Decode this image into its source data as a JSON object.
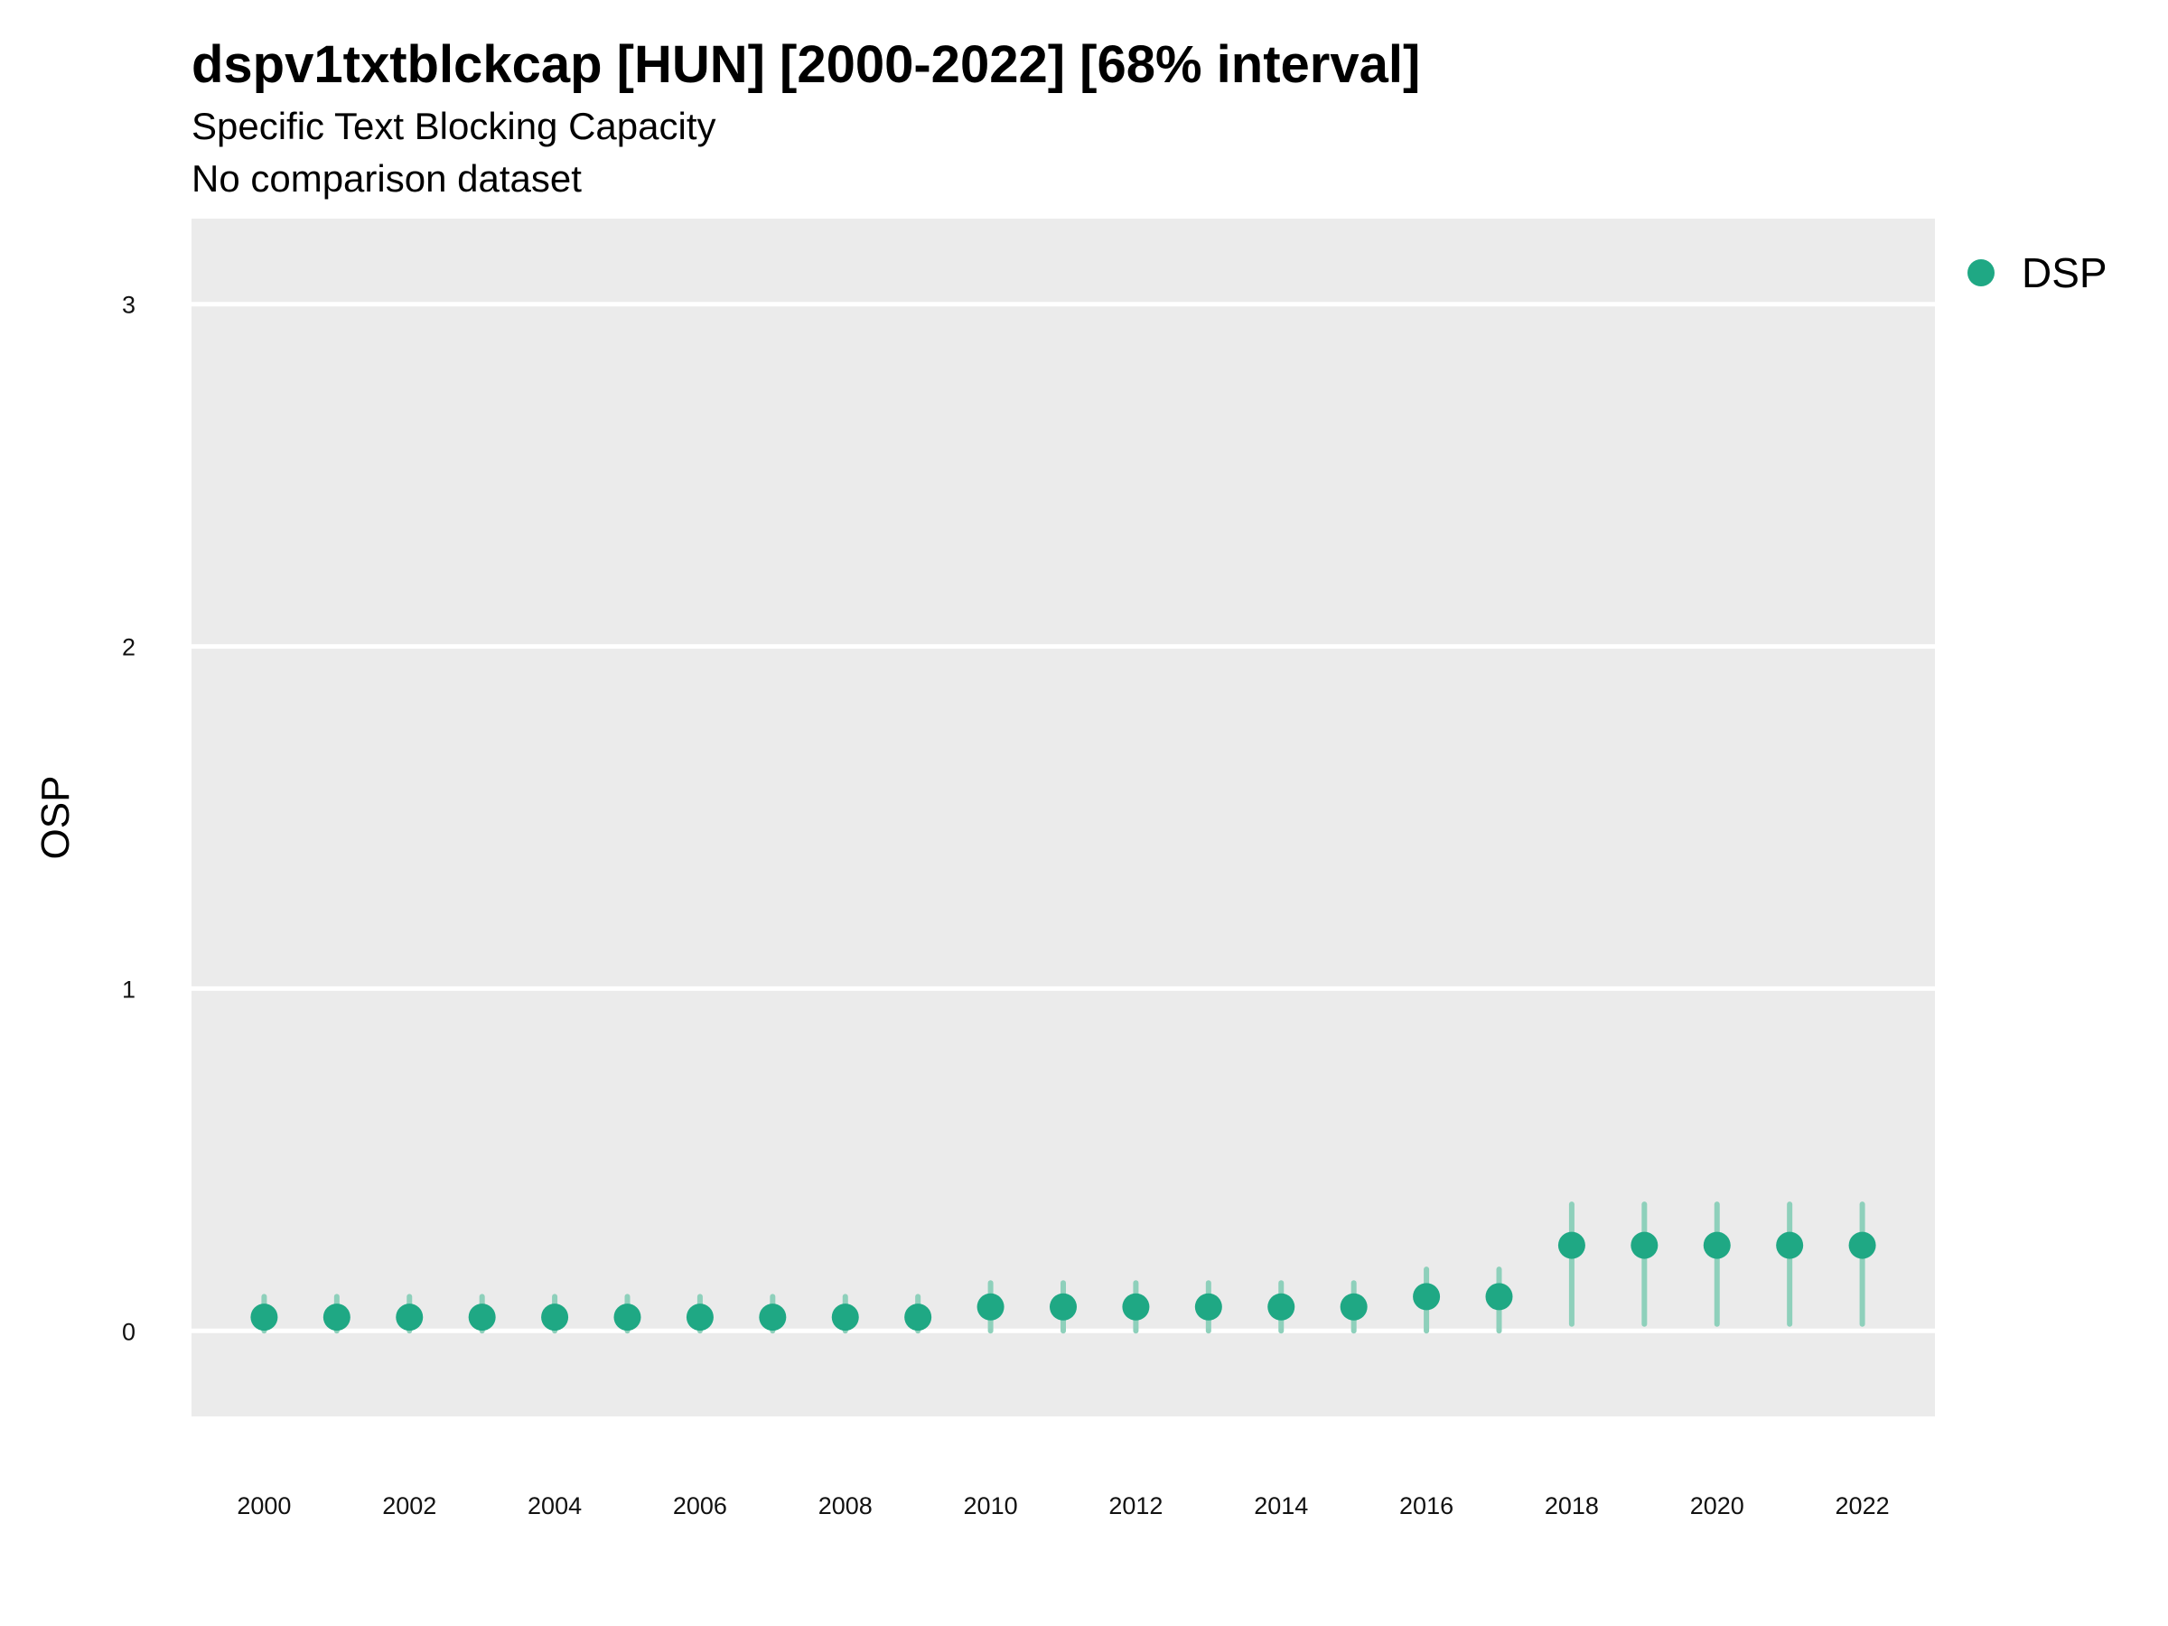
{
  "chart_data": {
    "type": "scatter",
    "title": "dspv1txtblckcap [HUN] [2000-2022] [68% interval]",
    "subtitle": "Specific Text Blocking Capacity",
    "caption": "No comparison dataset",
    "xlabel": "",
    "ylabel": "OSP",
    "x_tick_labels": [
      "2000",
      "2002",
      "2004",
      "2006",
      "2008",
      "2010",
      "2012",
      "2014",
      "2016",
      "2018",
      "2020",
      "2022"
    ],
    "y_tick_labels": [
      "0",
      "1",
      "2",
      "3"
    ],
    "xlim": [
      1999,
      2023
    ],
    "ylim": [
      -0.25,
      3.25
    ],
    "grid": true,
    "legend_position": "top-right",
    "colors": {
      "point": "#1fa884",
      "interval": "#8ed0bb",
      "panel": "#ebebeb",
      "grid": "#ffffff"
    },
    "series": [
      {
        "name": "DSP",
        "x": [
          2000,
          2001,
          2002,
          2003,
          2004,
          2005,
          2006,
          2007,
          2008,
          2009,
          2010,
          2011,
          2012,
          2013,
          2014,
          2015,
          2016,
          2017,
          2018,
          2019,
          2020,
          2021,
          2022
        ],
        "y": [
          0.04,
          0.04,
          0.04,
          0.04,
          0.04,
          0.04,
          0.04,
          0.04,
          0.04,
          0.04,
          0.07,
          0.07,
          0.07,
          0.07,
          0.07,
          0.07,
          0.1,
          0.1,
          0.25,
          0.25,
          0.25,
          0.25,
          0.25
        ],
        "lower": [
          0,
          0,
          0,
          0,
          0,
          0,
          0,
          0,
          0,
          0,
          0,
          0,
          0,
          0,
          0,
          0,
          0,
          0,
          0.02,
          0.02,
          0.02,
          0.02,
          0.02
        ],
        "upper": [
          0.1,
          0.1,
          0.1,
          0.1,
          0.1,
          0.1,
          0.1,
          0.1,
          0.1,
          0.1,
          0.14,
          0.14,
          0.14,
          0.14,
          0.14,
          0.14,
          0.18,
          0.18,
          0.37,
          0.37,
          0.37,
          0.37,
          0.37
        ]
      }
    ]
  }
}
